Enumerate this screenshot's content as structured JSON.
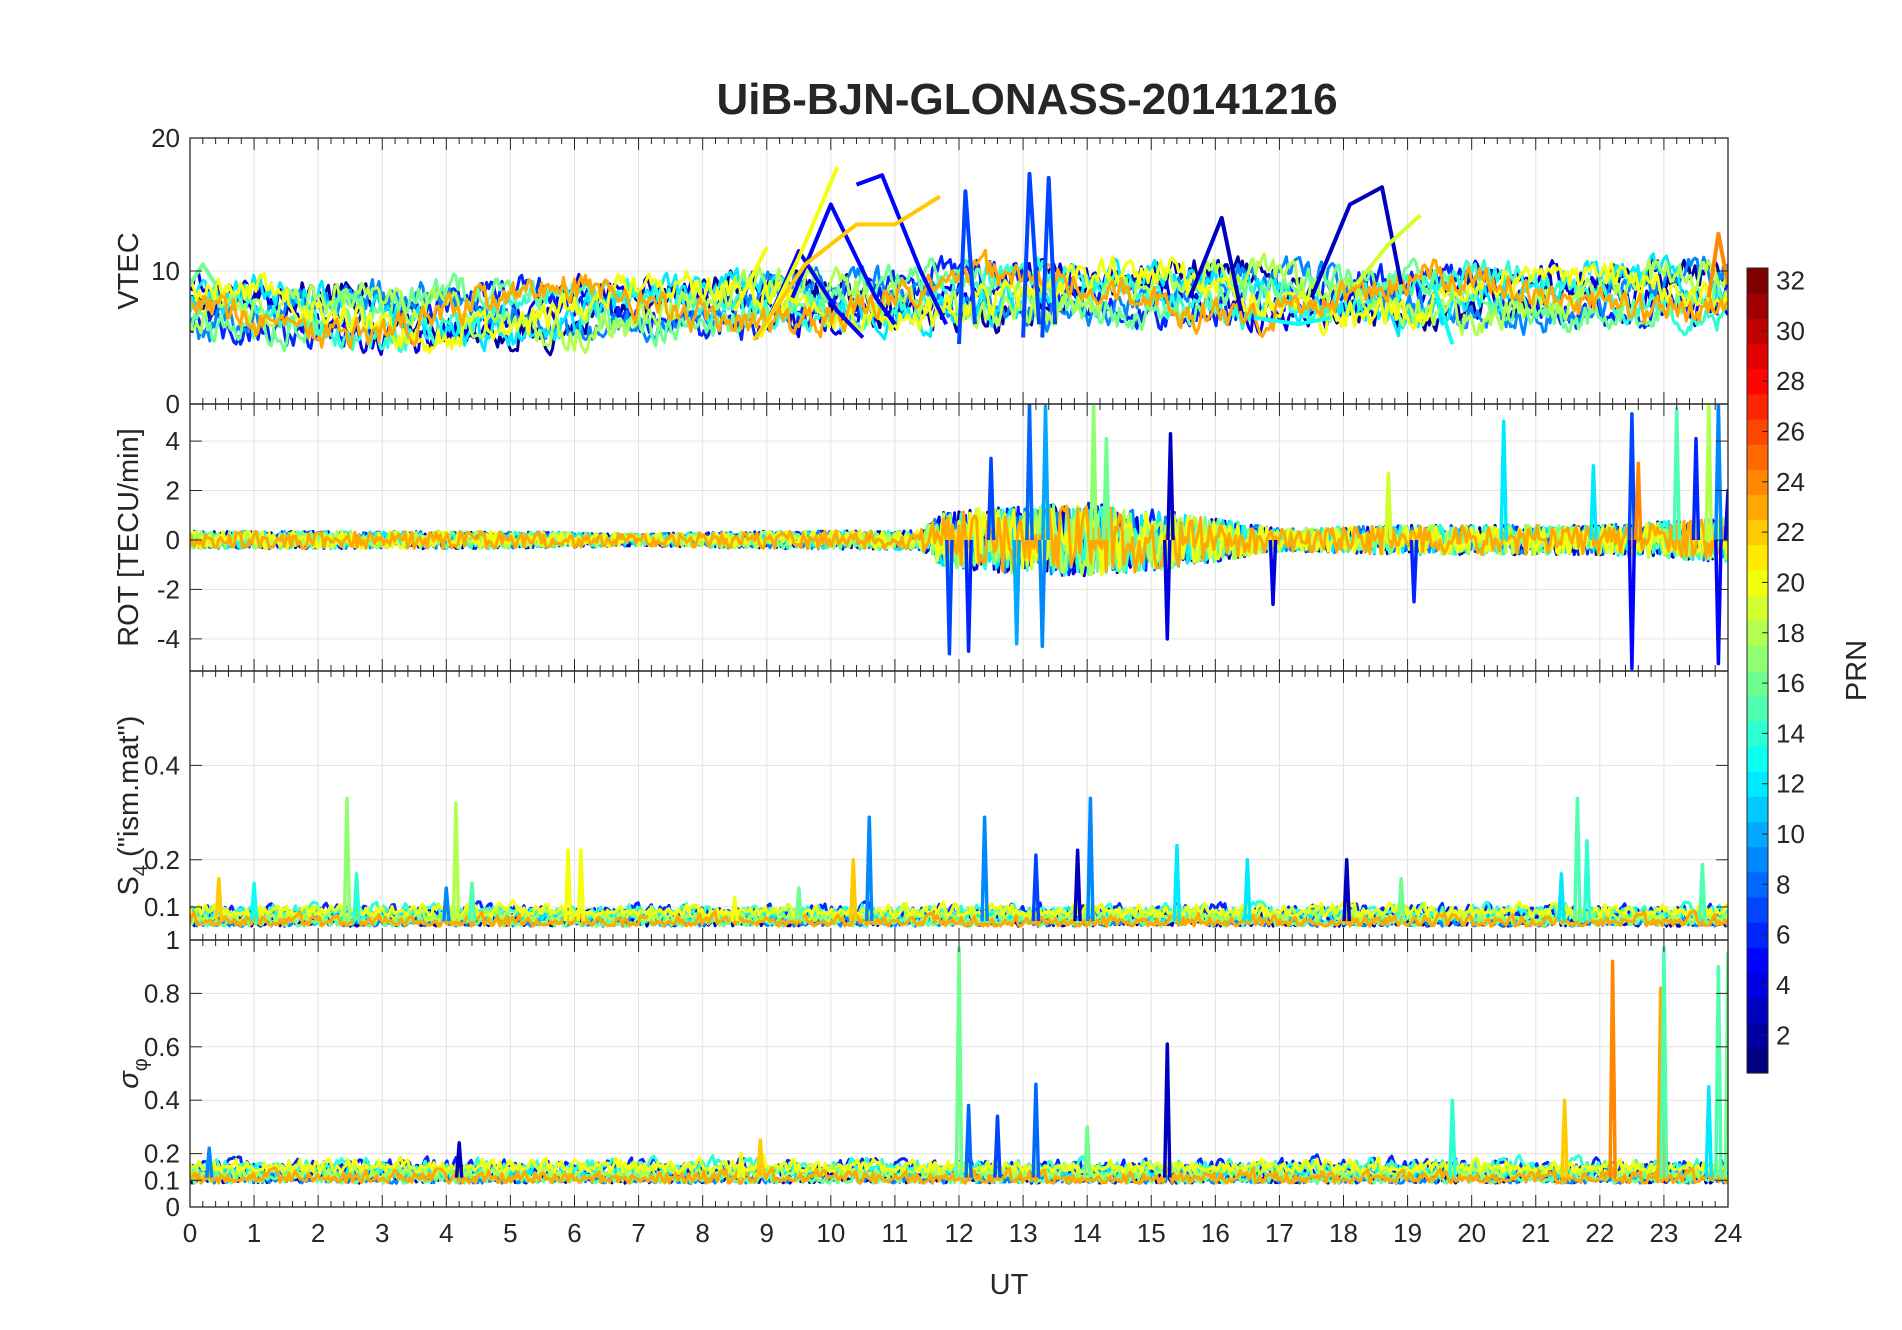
{
  "chart_data": {
    "type": "line",
    "title": "UiB-BJN-GLONASS-20141216",
    "xlabel": "UT",
    "x_ticks": [
      "0",
      "1",
      "2",
      "3",
      "4",
      "5",
      "6",
      "7",
      "8",
      "9",
      "10",
      "11",
      "12",
      "13",
      "14",
      "15",
      "16",
      "17",
      "18",
      "19",
      "20",
      "21",
      "22",
      "23",
      "24"
    ],
    "xlim": [
      0,
      24
    ],
    "grid": true,
    "colormap": "jet",
    "colorbar": {
      "label": "PRN",
      "range": [
        1,
        32
      ],
      "ticks": [
        "2",
        "4",
        "6",
        "8",
        "10",
        "12",
        "14",
        "16",
        "18",
        "20",
        "22",
        "24",
        "26",
        "28",
        "30",
        "32"
      ]
    },
    "panels": [
      {
        "id": "vtec",
        "ylabel": "VTEC",
        "ylim": [
          0,
          20
        ],
        "yticks": [
          "0",
          "10",
          "20"
        ],
        "baseline": [
          [
            0,
            7
          ],
          [
            3,
            6.6
          ],
          [
            6,
            7
          ],
          [
            8,
            7.3
          ],
          [
            9,
            7.6
          ],
          [
            11,
            7.7
          ],
          [
            12,
            8.3
          ],
          [
            16,
            8.3
          ],
          [
            19,
            8
          ],
          [
            21,
            8
          ],
          [
            24,
            8.5
          ]
        ],
        "amplitude": 1.6,
        "series": [
          {
            "prn": 5,
            "segments": [
              [
                [
                  9,
                  6
                ],
                [
                  9.5,
                  11.5
                ],
                [
                  10.1,
                  7
                ],
                [
                  10.5,
                  5
                ]
              ],
              [
                [
                  9.4,
                  8
                ],
                [
                  10,
                  15
                ],
                [
                  10.7,
                  8
                ],
                [
                  11,
                  6
                ]
              ],
              [
                [
                  10.4,
                  16.5
                ],
                [
                  10.8,
                  17.2
                ],
                [
                  11.4,
                  10
                ],
                [
                  11.8,
                  6
                ]
              ]
            ]
          },
          {
            "prn": 20,
            "segments": [
              [
                [
                  8.5,
                  7
                ],
                [
                  9,
                  11.8
                ]
              ],
              [
                [
                  8.9,
                  5
                ],
                [
                  9.5,
                  11
                ],
                [
                  10.1,
                  17.8
                ]
              ]
            ]
          },
          {
            "prn": 22,
            "segments": [
              [
                [
                  8.8,
                  4.8
                ],
                [
                  9.6,
                  10.5
                ],
                [
                  10.4,
                  13.5
                ],
                [
                  11,
                  13.5
                ],
                [
                  11.7,
                  15.6
                ]
              ]
            ]
          },
          {
            "prn": 7,
            "segments": [
              [
                [
                  12,
                  4.5
                ],
                [
                  12.1,
                  16
                ],
                [
                  12.25,
                  6
                ]
              ],
              [
                [
                  13,
                  5
                ],
                [
                  13.1,
                  17.3
                ],
                [
                  13.25,
                  6
                ]
              ],
              [
                [
                  13.3,
                  5
                ],
                [
                  13.4,
                  17
                ],
                [
                  13.5,
                  6
                ]
              ]
            ]
          },
          {
            "prn": 3,
            "segments": [
              [
                [
                  17.5,
                  8
                ],
                [
                  18.1,
                  15
                ],
                [
                  18.6,
                  16.3
                ],
                [
                  18.9,
                  9
                ]
              ],
              [
                [
                  15.6,
                  8
                ],
                [
                  16.1,
                  14
                ],
                [
                  16.4,
                  7
                ]
              ]
            ]
          },
          {
            "prn": 13,
            "segments": [
              [
                [
                  19.4,
                  9
                ],
                [
                  19.7,
                  4.5
                ]
              ],
              [
                [
                  16.6,
                  6.5
                ],
                [
                  17.3,
                  6
                ],
                [
                  17.8,
                  6.5
                ]
              ]
            ]
          },
          {
            "prn": 19,
            "segments": [
              [
                [
                  18.2,
                  9
                ],
                [
                  18.7,
                  12
                ],
                [
                  19.2,
                  14.2
                ]
              ]
            ]
          },
          {
            "prn": 24,
            "segments": [
              [
                [
                  23.7,
                  8
                ],
                [
                  23.85,
                  12.8
                ],
                [
                  24,
                  9
                ]
              ]
            ]
          },
          {
            "prn": 16,
            "segments": [
              [
                [
                  0,
                  9
                ],
                [
                  0.2,
                  10.5
                ],
                [
                  0.4,
                  9
                ]
              ],
              [
                [
                  2.2,
                  7
                ],
                [
                  2.4,
                  8.5
                ],
                [
                  2.7,
                  7.5
                ]
              ]
            ]
          }
        ]
      },
      {
        "id": "rot",
        "ylabel": "ROT [TECU/min]",
        "ylim": [
          -5.3,
          5.5
        ],
        "yticks": [
          "-4",
          "-2",
          "0",
          "2",
          "4"
        ],
        "baseline": [
          [
            0,
            0
          ],
          [
            24,
            0
          ]
        ],
        "amplitude_profile": [
          [
            0,
            0.35
          ],
          [
            5,
            0.35
          ],
          [
            7,
            0.25
          ],
          [
            9,
            0.35
          ],
          [
            11.4,
            0.4
          ],
          [
            11.8,
            1.2
          ],
          [
            14,
            1.5
          ],
          [
            15.5,
            1.1
          ],
          [
            17,
            0.45
          ],
          [
            19,
            0.6
          ],
          [
            22,
            0.6
          ],
          [
            24,
            0.9
          ]
        ],
        "spikes": [
          [
            11.85,
            -4.6,
            7
          ],
          [
            12.15,
            -4.5,
            6
          ],
          [
            12.5,
            3.3,
            7
          ],
          [
            12.9,
            -4.2,
            10
          ],
          [
            13.1,
            5.5,
            8
          ],
          [
            13.3,
            -4.3,
            9
          ],
          [
            13.35,
            5.4,
            10
          ],
          [
            14.1,
            5.5,
            17
          ],
          [
            14.3,
            4.1,
            16
          ],
          [
            15.25,
            -4,
            4
          ],
          [
            15.3,
            4.3,
            3
          ],
          [
            16.9,
            -2.6,
            4
          ],
          [
            18.7,
            2.7,
            19
          ],
          [
            19.1,
            -2.5,
            6
          ],
          [
            20.5,
            4.8,
            12
          ],
          [
            21.9,
            3,
            12
          ],
          [
            22.5,
            5.1,
            7
          ],
          [
            22.5,
            -5.2,
            5
          ],
          [
            22.6,
            3.1,
            24
          ],
          [
            23.2,
            5.3,
            15
          ],
          [
            23.5,
            4.1,
            6
          ],
          [
            23.7,
            5.5,
            18
          ],
          [
            23.85,
            -5,
            5
          ],
          [
            23.85,
            5.5,
            9
          ],
          [
            24,
            2,
            5
          ]
        ]
      },
      {
        "id": "s4",
        "ylabel": "S4 (\"ism.mat\")",
        "ylabel_main": "S",
        "ylabel_sub": "4",
        "ylabel_rest": " (\"ism.mat\")",
        "ylim": [
          0.03,
          0.6
        ],
        "yticks": [
          "0.1",
          "0.2",
          "0.4"
        ],
        "baseline": [
          [
            0,
            0.07
          ],
          [
            24,
            0.07
          ]
        ],
        "amplitude": 0.018,
        "spikes": [
          [
            0.45,
            0.16,
            22
          ],
          [
            1,
            0.15,
            13
          ],
          [
            2.45,
            0.33,
            17
          ],
          [
            2.6,
            0.17,
            14
          ],
          [
            4.15,
            0.32,
            18
          ],
          [
            4.4,
            0.15,
            15
          ],
          [
            5.9,
            0.22,
            20
          ],
          [
            6.1,
            0.22,
            20
          ],
          [
            8.5,
            0.12,
            20
          ],
          [
            9.5,
            0.14,
            16
          ],
          [
            10.35,
            0.2,
            22
          ],
          [
            10.6,
            0.29,
            9
          ],
          [
            12.4,
            0.29,
            9
          ],
          [
            13.2,
            0.21,
            7
          ],
          [
            13.85,
            0.22,
            3
          ],
          [
            14.05,
            0.33,
            9
          ],
          [
            15.4,
            0.23,
            12
          ],
          [
            16.5,
            0.2,
            12
          ],
          [
            18.05,
            0.2,
            3
          ],
          [
            18.9,
            0.16,
            16
          ],
          [
            21.4,
            0.17,
            12
          ],
          [
            21.65,
            0.33,
            15
          ],
          [
            21.8,
            0.24,
            14
          ],
          [
            23.6,
            0.19,
            15
          ],
          [
            4,
            0.14,
            9
          ],
          [
            7.2,
            0.1,
            19
          ]
        ]
      },
      {
        "id": "sigma_phi",
        "ylabel": "σφ",
        "ylabel_main": "σ",
        "ylabel_sub": "φ",
        "ylim": [
          0,
          1.0
        ],
        "yticks": [
          "0",
          "0.1",
          "0.2",
          "0.4",
          "0.6",
          "0.8",
          "1"
        ],
        "baseline": [
          [
            0,
            0.11
          ],
          [
            24,
            0.11
          ]
        ],
        "amplitude": 0.035,
        "spikes": [
          [
            12,
            0.97,
            16
          ],
          [
            12.15,
            0.38,
            8
          ],
          [
            13.2,
            0.46,
            8
          ],
          [
            15.25,
            0.61,
            3
          ],
          [
            21.45,
            0.4,
            22
          ],
          [
            22.2,
            0.92,
            24
          ],
          [
            22.95,
            0.82,
            23
          ],
          [
            23,
            0.73,
            23
          ],
          [
            23,
            0.97,
            15
          ],
          [
            23.7,
            0.45,
            12
          ],
          [
            23.85,
            0.9,
            15
          ],
          [
            24,
            0.95,
            16
          ],
          [
            19.7,
            0.4,
            14
          ],
          [
            14,
            0.3,
            16
          ],
          [
            12.6,
            0.34,
            7
          ],
          [
            8.6,
            0.2,
            20
          ],
          [
            8.9,
            0.25,
            22
          ],
          [
            4.2,
            0.24,
            3
          ],
          [
            0.3,
            0.22,
            9
          ]
        ]
      }
    ]
  }
}
